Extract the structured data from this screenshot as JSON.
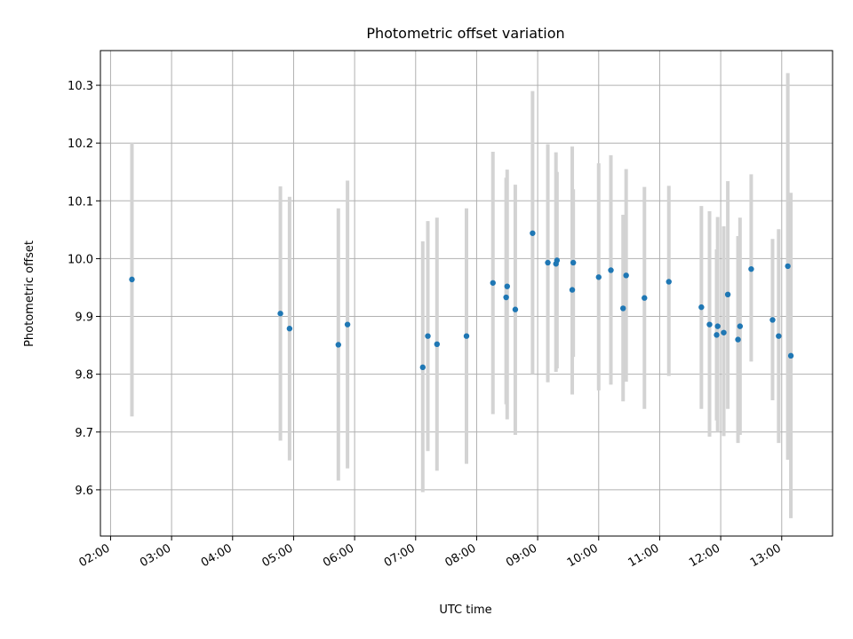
{
  "chart_data": {
    "type": "scatter",
    "title": "Photometric offset variation",
    "xlabel": "UTC time",
    "ylabel": "Photometric offset",
    "xlim": [
      "01:50",
      "13:50"
    ],
    "ylim": [
      9.52,
      10.36
    ],
    "grid": true,
    "x_ticks": [
      "02:00",
      "03:00",
      "04:00",
      "05:00",
      "06:00",
      "07:00",
      "08:00",
      "09:00",
      "10:00",
      "11:00",
      "12:00",
      "13:00"
    ],
    "y_ticks": [
      9.6,
      9.7,
      9.8,
      9.9,
      10.0,
      10.1,
      10.2,
      10.3
    ],
    "y_tick_labels": [
      "9.6",
      "9.7",
      "9.8",
      "9.9",
      "10.0",
      "10.1",
      "10.2",
      "10.3"
    ],
    "point_color": "#1f77b4",
    "errorbar_color": "#d3d3d3",
    "points": [
      {
        "time": "02:21",
        "y": 9.964,
        "lo": 9.727,
        "hi": 10.201
      },
      {
        "time": "04:47",
        "y": 9.905,
        "lo": 9.685,
        "hi": 10.125
      },
      {
        "time": "04:56",
        "y": 9.879,
        "lo": 9.651,
        "hi": 10.107
      },
      {
        "time": "05:44",
        "y": 9.851,
        "lo": 9.616,
        "hi": 10.087
      },
      {
        "time": "05:53",
        "y": 9.886,
        "lo": 9.637,
        "hi": 10.135
      },
      {
        "time": "07:07",
        "y": 9.812,
        "lo": 9.596,
        "hi": 10.03
      },
      {
        "time": "07:12",
        "y": 9.866,
        "lo": 9.667,
        "hi": 10.065
      },
      {
        "time": "07:21",
        "y": 9.852,
        "lo": 9.633,
        "hi": 10.071
      },
      {
        "time": "07:50",
        "y": 9.866,
        "lo": 9.645,
        "hi": 10.087
      },
      {
        "time": "08:16",
        "y": 9.958,
        "lo": 9.731,
        "hi": 10.185
      },
      {
        "time": "08:29",
        "y": 9.933,
        "lo": 9.748,
        "hi": 10.14
      },
      {
        "time": "08:30",
        "y": 9.952,
        "lo": 9.722,
        "hi": 10.154
      },
      {
        "time": "08:38",
        "y": 9.912,
        "lo": 9.695,
        "hi": 10.128
      },
      {
        "time": "08:55",
        "y": 10.044,
        "lo": 9.8,
        "hi": 10.29
      },
      {
        "time": "09:10",
        "y": 9.993,
        "lo": 9.786,
        "hi": 10.198
      },
      {
        "time": "09:18",
        "y": 9.991,
        "lo": 9.804,
        "hi": 10.184
      },
      {
        "time": "09:19",
        "y": 9.997,
        "lo": 9.81,
        "hi": 10.15
      },
      {
        "time": "09:34",
        "y": 9.946,
        "lo": 9.765,
        "hi": 10.194
      },
      {
        "time": "09:35",
        "y": 9.993,
        "lo": 9.83,
        "hi": 10.12
      },
      {
        "time": "10:00",
        "y": 9.968,
        "lo": 9.772,
        "hi": 10.165
      },
      {
        "time": "10:12",
        "y": 9.98,
        "lo": 9.782,
        "hi": 10.179
      },
      {
        "time": "10:24",
        "y": 9.914,
        "lo": 9.753,
        "hi": 10.076
      },
      {
        "time": "10:27",
        "y": 9.971,
        "lo": 9.787,
        "hi": 10.155
      },
      {
        "time": "10:45",
        "y": 9.932,
        "lo": 9.74,
        "hi": 10.124
      },
      {
        "time": "11:09",
        "y": 9.96,
        "lo": 9.797,
        "hi": 10.126
      },
      {
        "time": "11:41",
        "y": 9.916,
        "lo": 9.74,
        "hi": 10.091
      },
      {
        "time": "11:49",
        "y": 9.886,
        "lo": 9.692,
        "hi": 10.082
      },
      {
        "time": "11:56",
        "y": 9.868,
        "lo": 9.72,
        "hi": 10.016
      },
      {
        "time": "11:57",
        "y": 9.883,
        "lo": 9.7,
        "hi": 10.072
      },
      {
        "time": "12:03",
        "y": 9.872,
        "lo": 9.693,
        "hi": 10.056
      },
      {
        "time": "12:07",
        "y": 9.938,
        "lo": 9.74,
        "hi": 10.134
      },
      {
        "time": "12:17",
        "y": 9.86,
        "lo": 9.681,
        "hi": 10.039
      },
      {
        "time": "12:19",
        "y": 9.883,
        "lo": 9.695,
        "hi": 10.071
      },
      {
        "time": "12:30",
        "y": 9.982,
        "lo": 9.822,
        "hi": 10.146
      },
      {
        "time": "12:51",
        "y": 9.894,
        "lo": 9.755,
        "hi": 10.034
      },
      {
        "time": "12:57",
        "y": 9.866,
        "lo": 9.681,
        "hi": 10.051
      },
      {
        "time": "13:06",
        "y": 9.987,
        "lo": 9.652,
        "hi": 10.321
      },
      {
        "time": "13:09",
        "y": 9.832,
        "lo": 9.551,
        "hi": 10.114
      }
    ]
  }
}
